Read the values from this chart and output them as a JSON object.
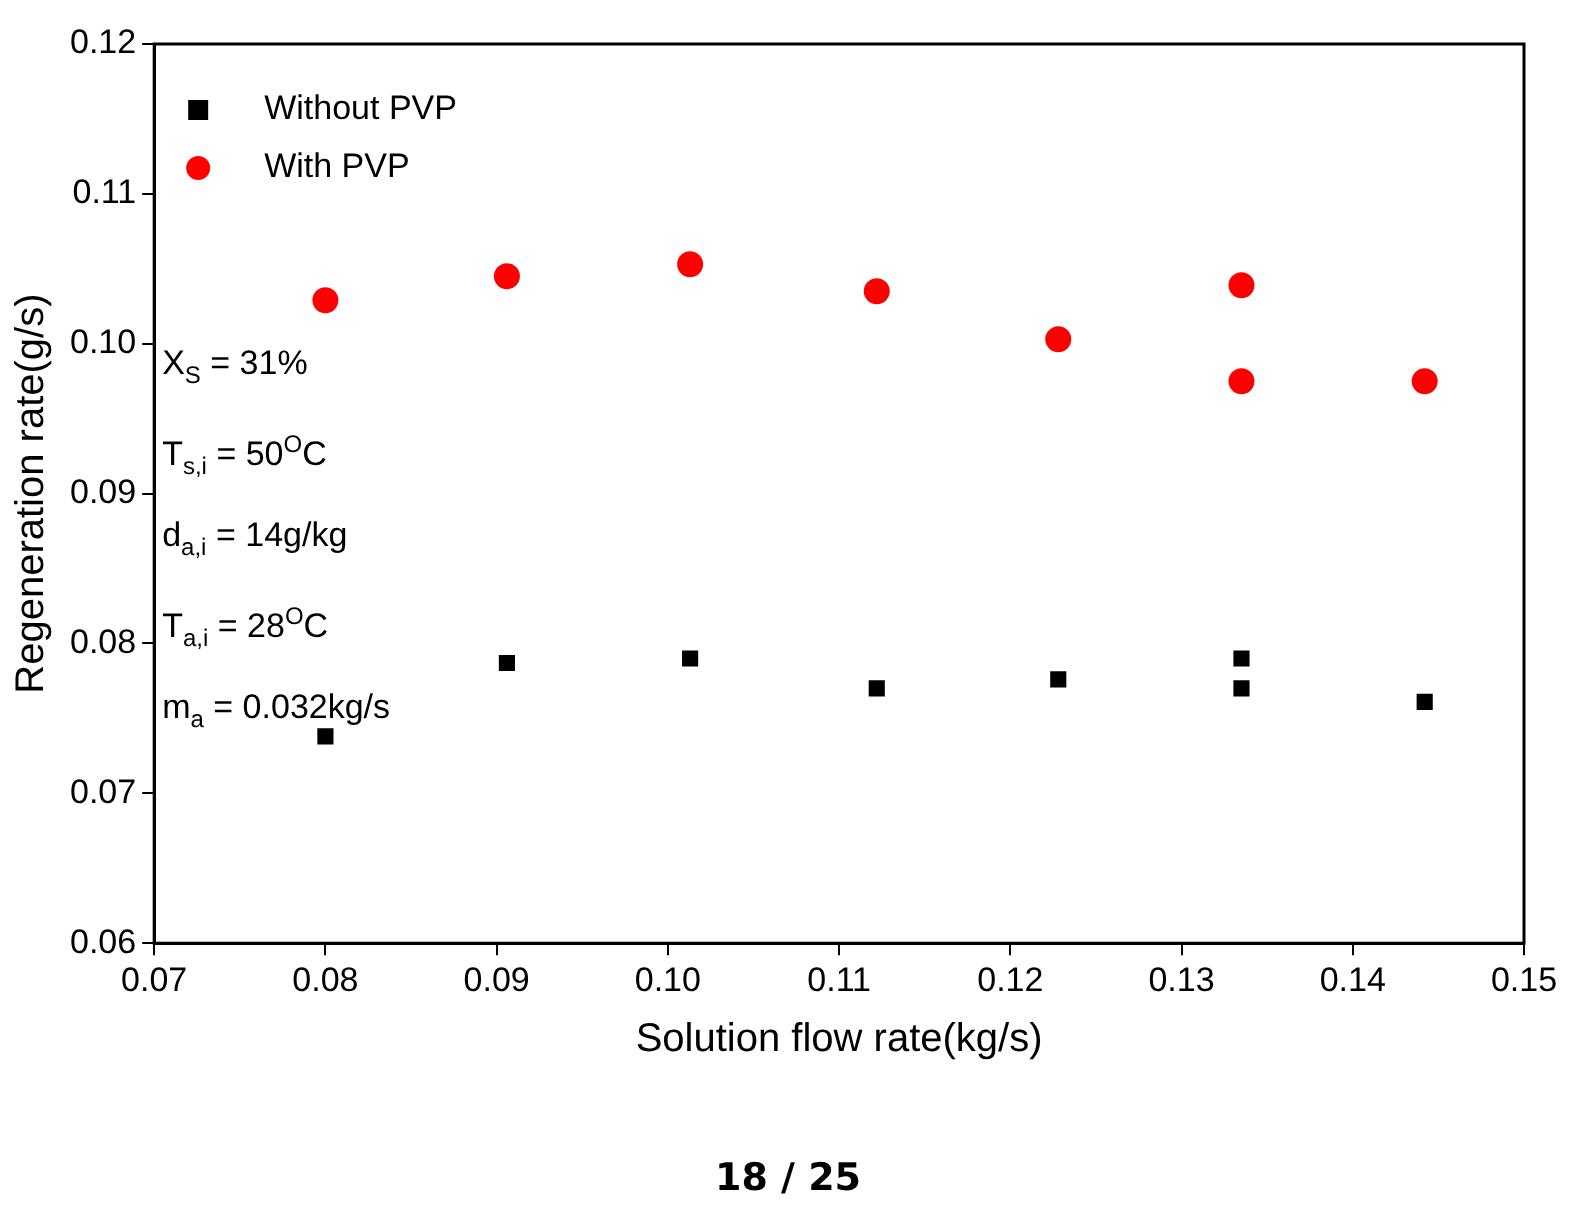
{
  "chart_data": {
    "type": "scatter",
    "xlabel": "Solution flow rate(kg/s)",
    "ylabel": "Regeneration rate(g/s)",
    "xlim": [
      0.07,
      0.15
    ],
    "xticks": [
      {
        "value": 0.07,
        "label": "0.07"
      },
      {
        "value": 0.08,
        "label": "0.08"
      },
      {
        "value": 0.09,
        "label": "0.09"
      },
      {
        "value": 0.1,
        "label": "0.10"
      },
      {
        "value": 0.11,
        "label": "0.11"
      },
      {
        "value": 0.12,
        "label": "0.12"
      },
      {
        "value": 0.13,
        "label": "0.13"
      },
      {
        "value": 0.14,
        "label": "0.14"
      },
      {
        "value": 0.15,
        "label": "0.15"
      }
    ],
    "ylim": [
      0.06,
      0.12
    ],
    "yticks": [
      {
        "value": 0.06,
        "label": "0.06"
      },
      {
        "value": 0.07,
        "label": "0.07"
      },
      {
        "value": 0.08,
        "label": "0.08"
      },
      {
        "value": 0.09,
        "label": "0.09"
      },
      {
        "value": 0.1,
        "label": "0.10"
      },
      {
        "value": 0.11,
        "label": "0.11"
      },
      {
        "value": 0.12,
        "label": "0.12"
      }
    ],
    "grid": false,
    "legend": "top left",
    "series": [
      {
        "name": "Without PVP",
        "color": "#000000",
        "marker": "square",
        "x": [
          0.08,
          0.0906,
          0.1013,
          0.1122,
          0.1228,
          0.1335,
          0.1335,
          0.1442
        ],
        "values": [
          0.0738,
          0.0787,
          0.079,
          0.077,
          0.0776,
          0.079,
          0.077,
          0.0761
        ]
      },
      {
        "name": "With PVP",
        "color": "#ff0000",
        "marker": "circle",
        "x": [
          0.08,
          0.0906,
          0.1013,
          0.1122,
          0.1228,
          0.1335,
          0.1335,
          0.1442
        ],
        "values": [
          0.1029,
          0.1045,
          0.1053,
          0.1035,
          0.1003,
          0.1039,
          0.0975,
          0.0975
        ]
      }
    ],
    "annotations": [
      "X$_{S}$ = 31%",
      "T$_{s,i}$ = 50$^{O}$C",
      "d$_{a,i}$ = 14g/kg",
      "T$_{a,i}$ = 28$^{O}$C",
      "m$_{a}$ = 0.032kg/s",
      "18 / 25"
    ]
  }
}
